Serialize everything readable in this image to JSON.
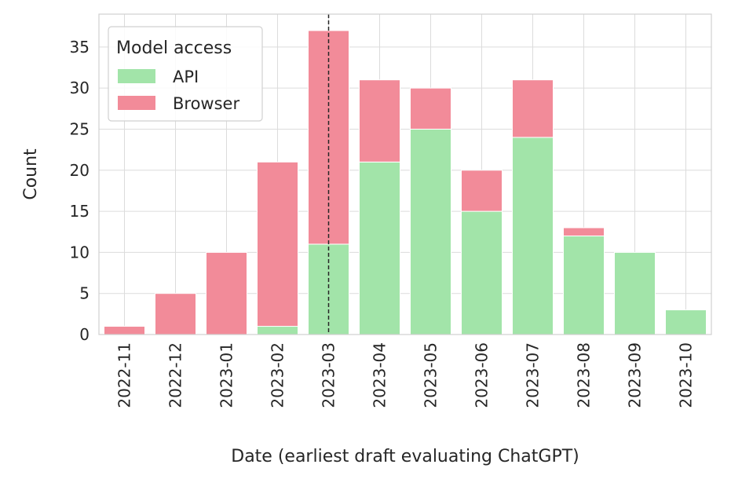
{
  "chart_data": {
    "type": "bar",
    "stacked": true,
    "categories": [
      "2022-11",
      "2022-12",
      "2023-01",
      "2023-02",
      "2023-03",
      "2023-04",
      "2023-05",
      "2023-06",
      "2023-07",
      "2023-08",
      "2023-09",
      "2023-10"
    ],
    "series": [
      {
        "name": "API",
        "color": "#a2e4a9",
        "values": [
          0,
          0,
          0,
          1,
          11,
          21,
          25,
          15,
          24,
          12,
          10,
          3
        ]
      },
      {
        "name": "Browser",
        "color": "#f28b99",
        "values": [
          1,
          5,
          10,
          20,
          26,
          10,
          5,
          5,
          7,
          1,
          0,
          0
        ]
      }
    ],
    "xlabel": "Date (earliest draft evaluating ChatGPT)",
    "ylabel": "Count",
    "ylim": [
      0,
      39
    ],
    "yticks": [
      0,
      5,
      10,
      15,
      20,
      25,
      30,
      35
    ],
    "grid": true,
    "legend": {
      "title": "Model access",
      "placement": "top-left"
    },
    "vline_category": "2023-03"
  }
}
